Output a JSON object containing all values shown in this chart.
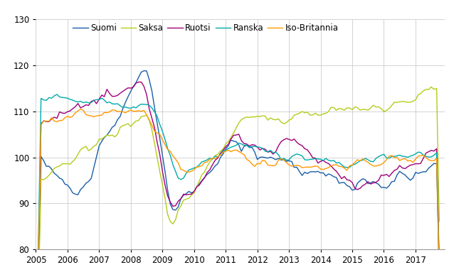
{
  "title": "",
  "ylim": [
    80,
    130
  ],
  "yticks": [
    80,
    90,
    100,
    110,
    120,
    130
  ],
  "xtick_years": [
    2005,
    2006,
    2007,
    2008,
    2009,
    2010,
    2011,
    2012,
    2013,
    2014,
    2015,
    2016,
    2017
  ],
  "colors": {
    "Suomi": "#1a5fa8",
    "Saksa": "#b5cc1a",
    "Ruotsi": "#a0007a",
    "Ranska": "#00aaaa",
    "Iso-Britannia": "#ff9900"
  },
  "linewidth": 1.0,
  "grid_color": "#cccccc",
  "background_color": "#ffffff",
  "legend_fontsize": 8.5,
  "tick_fontsize": 8.5
}
